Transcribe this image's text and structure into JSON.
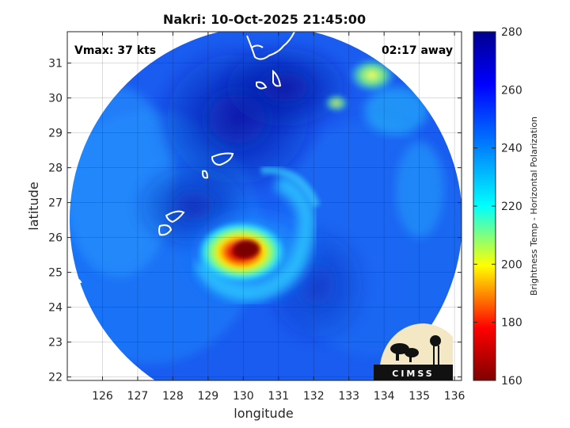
{
  "title": "Nakri: 10-Oct-2025 21:45:00",
  "vmax_label": "Vmax: 37 kts",
  "time_label": "02:17 away",
  "xlabel": "longitude",
  "ylabel": "latitude",
  "colorbar_label": "Brightness Temp - Horizontal Polarization",
  "logo_text": "CIMSS",
  "x_ticks": [
    "126",
    "127",
    "128",
    "129",
    "130",
    "131",
    "132",
    "133",
    "134",
    "135",
    "136"
  ],
  "y_ticks": [
    "22",
    "23",
    "24",
    "25",
    "26",
    "27",
    "28",
    "29",
    "30",
    "31"
  ],
  "colorbar_ticks": [
    "160",
    "180",
    "200",
    "220",
    "240",
    "260",
    "280"
  ],
  "colorbar_range": [
    160,
    280
  ],
  "colormap": [
    "#7f0000",
    "#ff0000",
    "#ffff00",
    "#00ffff",
    "#0080ff",
    "#0000ff",
    "#00008f"
  ],
  "storm_center": {
    "lon": 130.2,
    "lat": 25.7
  },
  "chart_data": {
    "type": "heatmap",
    "title": "Nakri: 10-Oct-2025 21:45:00",
    "xlabel": "longitude",
    "ylabel": "latitude",
    "xlim": [
      125,
      136.2
    ],
    "ylim": [
      21.9,
      31.9
    ],
    "colorbar": {
      "label": "Brightness Temp - Horizontal Polarization",
      "min": 160,
      "max": 280
    },
    "annotations": [
      "Vmax: 37 kts",
      "02:17 away"
    ],
    "grid": true
  }
}
